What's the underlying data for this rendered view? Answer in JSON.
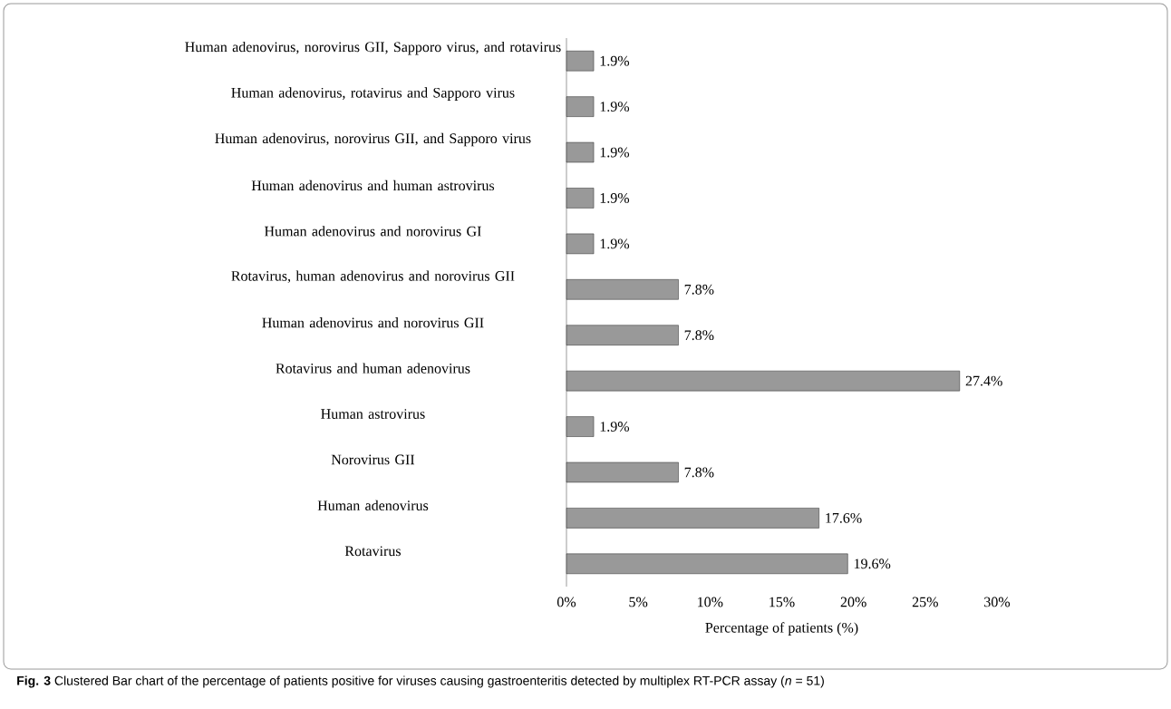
{
  "chart_data": {
    "type": "bar",
    "orientation": "horizontal",
    "categories": [
      "Human adenovirus, norovirus GII, Sapporo virus, and rotavirus",
      "Human adenovirus, rotavirus and Sapporo virus",
      "Human adenovirus, norovirus GII, and Sapporo virus",
      "Human adenovirus and human astrovirus",
      "Human adenovirus and norovirus GI",
      "Rotavirus, human adenovirus and norovirus GII",
      "Human adenovirus and norovirus GII",
      "Rotavirus and human adenovirus",
      "Human astrovirus",
      "Norovirus GII",
      "Human adenovirus",
      "Rotavirus"
    ],
    "values": [
      1.9,
      1.9,
      1.9,
      1.9,
      1.9,
      7.8,
      7.8,
      27.4,
      1.9,
      7.8,
      17.6,
      19.6
    ],
    "value_labels": [
      "1.9%",
      "1.9%",
      "1.9%",
      "1.9%",
      "1.9%",
      "7.8%",
      "7.8%",
      "27.4%",
      "1.9%",
      "7.8%",
      "17.6%",
      "19.6%"
    ],
    "color": "#999999",
    "xlim": [
      0,
      30
    ],
    "xticks": [
      {
        "value": 0,
        "label": "0%"
      },
      {
        "value": 5,
        "label": "5%"
      },
      {
        "value": 10,
        "label": "10%"
      },
      {
        "value": 15,
        "label": "15%"
      },
      {
        "value": 20,
        "label": "20%"
      },
      {
        "value": 25,
        "label": "25%"
      },
      {
        "value": 30,
        "label": "30%"
      }
    ],
    "xlabel": "Percentage of patients (%)",
    "annotations": [
      "**Fig. 3** Clustered Bar chart of the percentage of patients positive for viruses causing gastroenteritis detected by multiplex RT-PCR assay (*n* = 51)"
    ]
  }
}
